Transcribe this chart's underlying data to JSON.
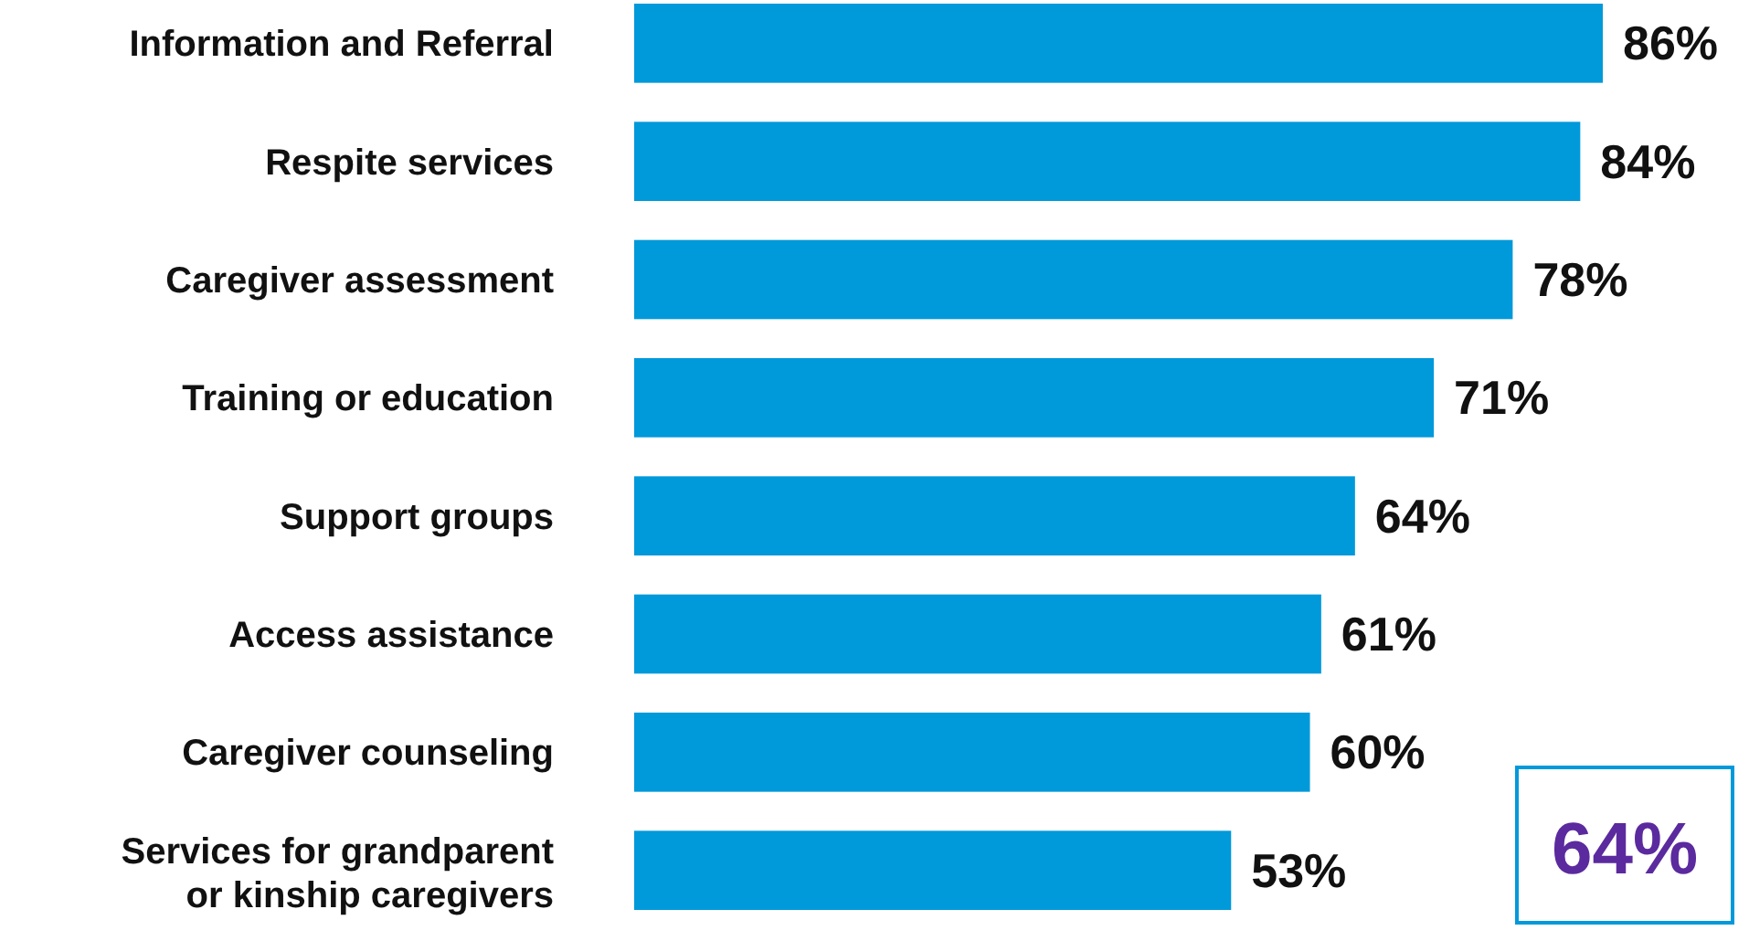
{
  "chart_data": {
    "type": "bar",
    "orientation": "horizontal",
    "categories": [
      "Information and Referral",
      "Respite services",
      "Caregiver assessment",
      "Training or education",
      "Support groups",
      "Access assistance",
      "Caregiver counseling",
      "Services for grandparent or kinship caregivers"
    ],
    "values": [
      86,
      84,
      78,
      71,
      64,
      61,
      60,
      53
    ],
    "value_labels": [
      "86%",
      "84%",
      "78%",
      "71%",
      "64%",
      "61%",
      "60%",
      "53%"
    ],
    "color": "#0099da",
    "annotations": [
      "64%"
    ]
  }
}
